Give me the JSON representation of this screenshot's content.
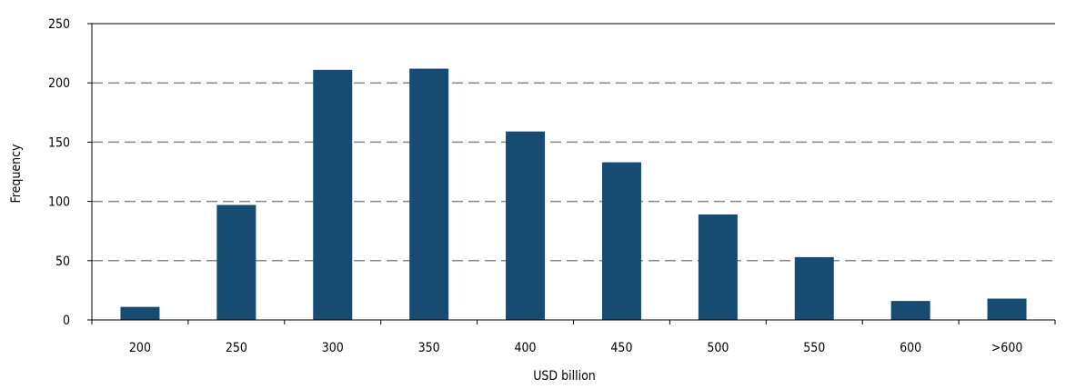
{
  "chart_data": {
    "type": "bar",
    "categories": [
      "200",
      "250",
      "300",
      "350",
      "400",
      "450",
      "500",
      "550",
      "600",
      ">600"
    ],
    "values": [
      11,
      97,
      211,
      212,
      159,
      133,
      89,
      53,
      16,
      18
    ],
    "xlabel": "USD billion",
    "ylabel": "Frequency",
    "ylim": [
      0,
      250
    ],
    "yticks": [
      0,
      50,
      100,
      150,
      200,
      250
    ],
    "ytick_labels": [
      "0",
      "50",
      "100",
      "150",
      "200",
      "250"
    ],
    "grid": true,
    "bar_color": "#174b72",
    "grid_color": "#888888"
  }
}
